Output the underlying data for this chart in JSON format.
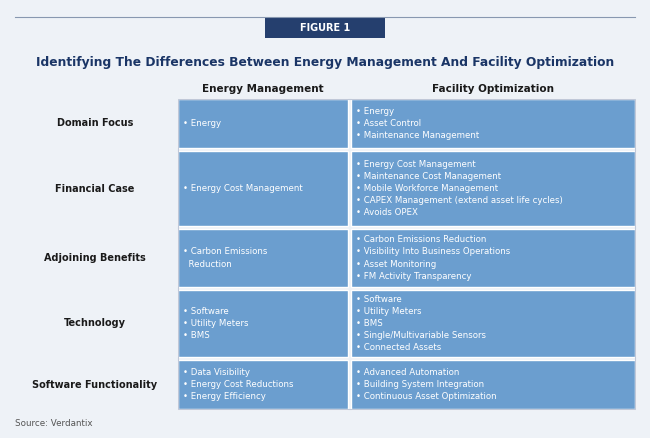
{
  "figure_label": "FIGURE 1",
  "title": "Identifying The Differences Between Energy Management And Facility Optimization",
  "col_headers": [
    "Energy Management",
    "Facility Optimization"
  ],
  "row_labels": [
    "Domain Focus",
    "Financial Case",
    "Adjoining Benefits",
    "Technology",
    "Software Functionality"
  ],
  "energy_mgmt": [
    "• Energy",
    "• Energy Cost Management",
    "• Carbon Emissions\n  Reduction",
    "• Software\n• Utility Meters\n• BMS",
    "• Data Visibility\n• Energy Cost Reductions\n• Energy Efficiency"
  ],
  "facility_opt": [
    "• Energy\n• Asset Control\n• Maintenance Management",
    "• Energy Cost Management\n• Maintenance Cost Management\n• Mobile Workforce Management\n• CAPEX Management (extend asset life cycles)\n• Avoids OPEX",
    "• Carbon Emissions Reduction\n• Visibility Into Business Operations\n• Asset Monitoring\n• FM Activity Transparency",
    "• Software\n• Utility Meters\n• BMS\n• Single/Multivariable Sensors\n• Connected Assets",
    "• Advanced Automation\n• Building System Integration\n• Continuous Asset Optimization"
  ],
  "source": "Source: Verdantix",
  "bg_color": "#eef2f7",
  "cell_color": "#6b9ecf",
  "figure_label_bg": "#253f6e",
  "figure_label_text": "#ffffff",
  "title_color": "#1a3566",
  "row_label_color": "#1a1a1a",
  "cell_text_color": "#ffffff",
  "header_line_color": "#c0c8d8",
  "row_gap_color": "#eef2f7"
}
